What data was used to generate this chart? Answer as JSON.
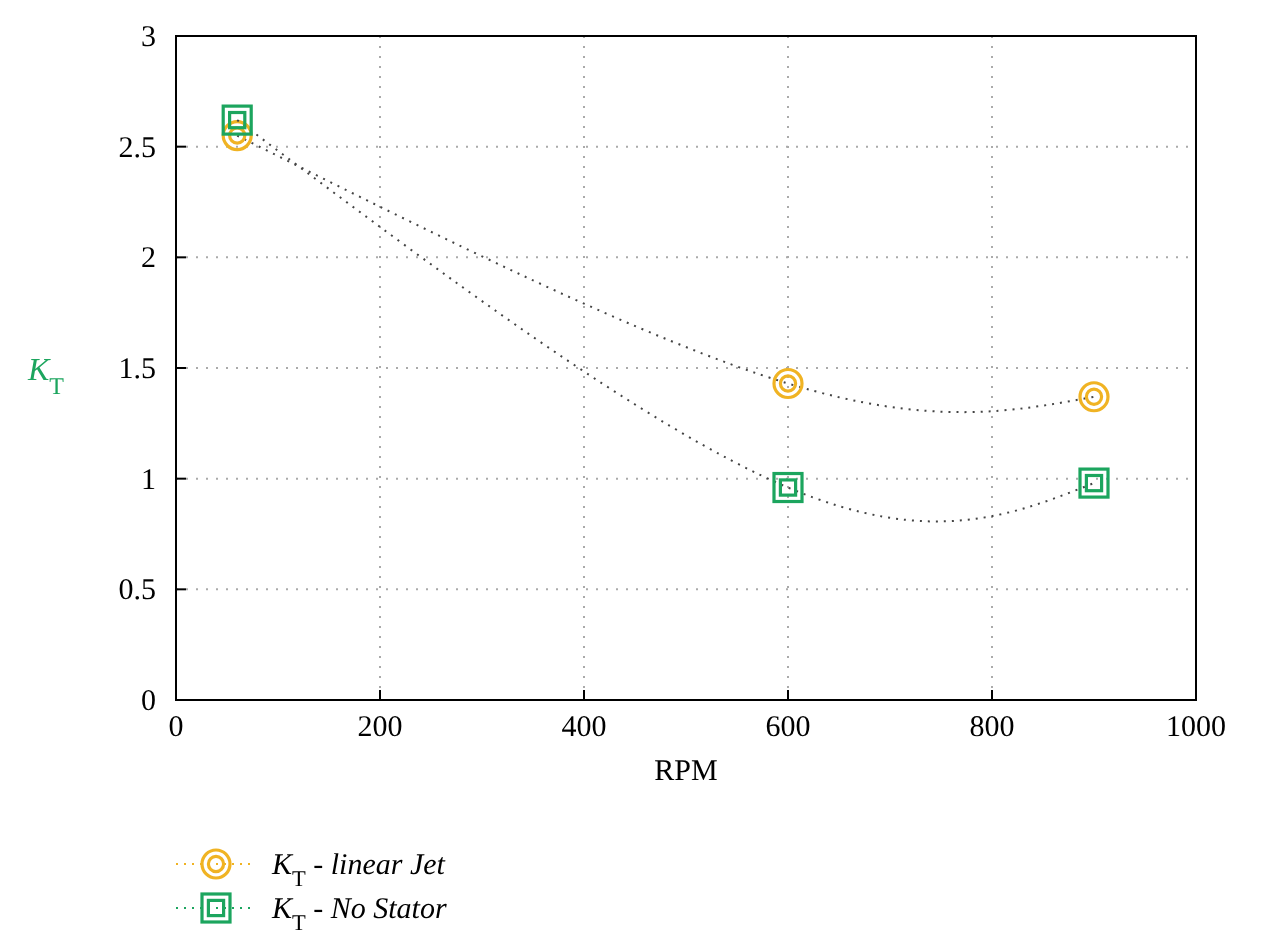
{
  "chart_data": {
    "type": "line",
    "xlabel": "RPM",
    "ylabel": "K$_{T}$",
    "x": [
      60,
      600,
      900
    ],
    "series": [
      {
        "name": "K$_{T}$ - linear Jet",
        "color": "#f0b323",
        "values": [
          2.55,
          1.43,
          1.37
        ],
        "marker": "circle"
      },
      {
        "name": "K$_{T}$ - No Stator",
        "color": "#1ca55e",
        "values": [
          2.62,
          0.96,
          0.98
        ],
        "marker": "square"
      }
    ],
    "xlim": [
      0,
      1000
    ],
    "xticks": [
      0,
      200,
      400,
      600,
      800,
      1000
    ],
    "ylim": [
      0,
      3
    ],
    "yticks": [
      0,
      0.5,
      1,
      1.5,
      2,
      2.5,
      3
    ],
    "grid": true,
    "legend": "bottom",
    "line_style": "dotted"
  }
}
